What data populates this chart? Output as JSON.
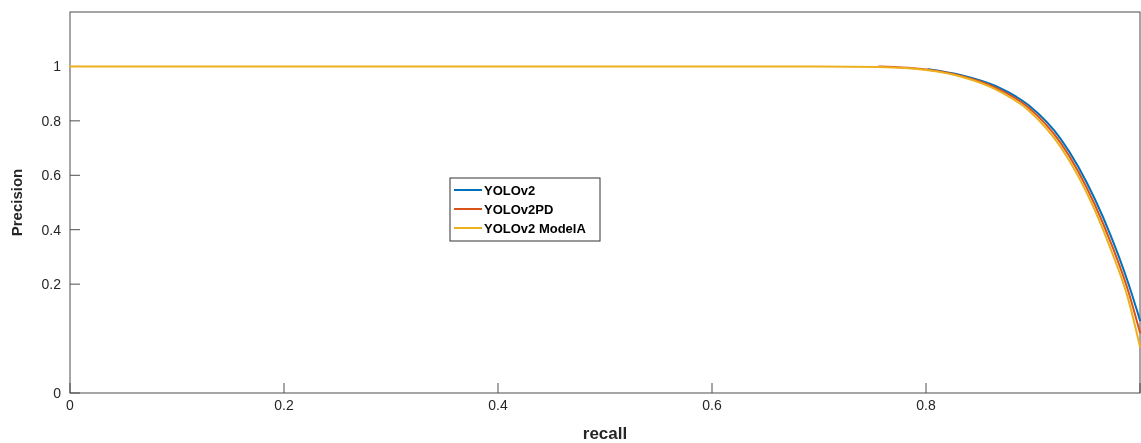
{
  "chart_data": {
    "type": "line",
    "xlabel": "recall",
    "ylabel": "Precision",
    "x": [
      0,
      0.2,
      0.5,
      0.7,
      0.756,
      0.802,
      0.833,
      0.865,
      0.896,
      0.926,
      0.958,
      0.973,
      0.989,
      1
    ],
    "series": [
      {
        "name": "YOLOv2",
        "color": "#0072bd",
        "values": [
          null,
          null,
          null,
          null,
          null,
          0.99,
          0.968,
          0.928,
          0.857,
          0.733,
          0.511,
          0.375,
          0.204,
          0.067
        ]
      },
      {
        "name": "YOLOv2PD",
        "color": "#d95319",
        "values": [
          null,
          null,
          null,
          null,
          1,
          0.988,
          0.965,
          0.922,
          0.848,
          0.718,
          0.49,
          0.35,
          0.175,
          0.022
        ]
      },
      {
        "name": "YOLOv2 ModelA",
        "color": "#edb120",
        "values": [
          1,
          1,
          1,
          1,
          0.998,
          0.986,
          0.962,
          0.916,
          0.838,
          0.703,
          0.47,
          0.325,
          0.145,
          -0.03
        ]
      }
    ],
    "xlim": [
      0,
      1
    ],
    "xticks": [
      0,
      0.2,
      0.4,
      0.6,
      0.8,
      {
        "value": 1,
        "label": null
      }
    ],
    "ylim": [
      -0.2,
      1.2
    ],
    "yticks": [
      {
        "value": -0.2,
        "label": "0"
      },
      0.2,
      0.4,
      0.6,
      0.8,
      1
    ],
    "grid": false,
    "legend": "left",
    "marker": "none",
    "line_style": "solid"
  }
}
